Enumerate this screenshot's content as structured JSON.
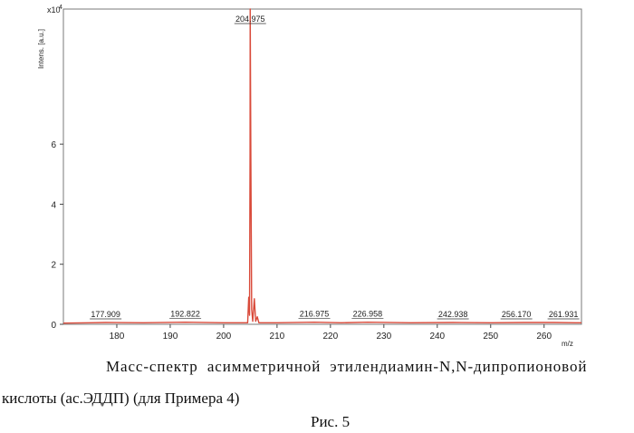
{
  "chart_data": {
    "type": "line",
    "ylabel": "Intens. [a.u.]",
    "y_multiplier": "x10",
    "y_exponent": "4",
    "xlabel": "m/z",
    "xlim": [
      170,
      267
    ],
    "ylim": [
      0,
      10.5
    ],
    "x_ticks": [
      180,
      190,
      200,
      210,
      220,
      230,
      240,
      250,
      260
    ],
    "y_ticks": [
      0,
      2,
      4,
      6
    ],
    "series": [
      {
        "color": "#d94a3a",
        "points": [
          [
            170,
            0.04
          ],
          [
            175,
            0.05
          ],
          [
            177.909,
            0.06
          ],
          [
            185,
            0.05
          ],
          [
            192.822,
            0.07
          ],
          [
            200,
            0.05
          ],
          [
            204.5,
            0.05
          ],
          [
            204.7,
            0.9
          ],
          [
            204.85,
            0.3
          ],
          [
            204.95,
            5.7
          ],
          [
            204.975,
            10.5
          ],
          [
            205.1,
            5.4
          ],
          [
            205.25,
            0.5
          ],
          [
            205.45,
            0.1
          ],
          [
            205.75,
            0.85
          ],
          [
            206.0,
            0.1
          ],
          [
            206.3,
            0.25
          ],
          [
            206.6,
            0.05
          ],
          [
            210,
            0.05
          ],
          [
            216.975,
            0.07
          ],
          [
            222,
            0.05
          ],
          [
            226.958,
            0.07
          ],
          [
            235,
            0.05
          ],
          [
            242.938,
            0.06
          ],
          [
            250,
            0.05
          ],
          [
            256.17,
            0.06
          ],
          [
            261.931,
            0.06
          ],
          [
            267,
            0.05
          ]
        ]
      }
    ],
    "peak_labels": [
      {
        "x": 177.909,
        "text": "177.909"
      },
      {
        "x": 192.822,
        "text": "192.822"
      },
      {
        "x": 204.975,
        "text": "204.975"
      },
      {
        "x": 216.975,
        "text": "216.975"
      },
      {
        "x": 226.958,
        "text": "226.958"
      },
      {
        "x": 242.938,
        "text": "242.938"
      },
      {
        "x": 256.17,
        "text": "256.170"
      },
      {
        "x": 261.931,
        "text": "261.931"
      }
    ]
  },
  "caption": {
    "line1": "Масс-спектр асимметричной этилендиамин-N,N-дипропионовой",
    "line2": "кислоты (ас.ЭДДП) (для Примера 4)",
    "figure_label": "Рис. 5"
  }
}
